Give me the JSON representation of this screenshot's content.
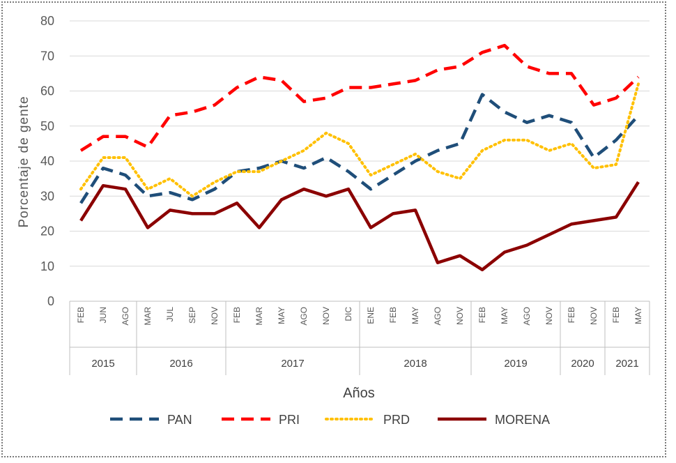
{
  "chart_data": {
    "type": "line",
    "xlabel": "Años",
    "ylabel": "Porcentaje de gente",
    "ylim": [
      0,
      80
    ],
    "yticks": [
      "0",
      "10",
      "20",
      "30",
      "40",
      "50",
      "60",
      "70",
      "80"
    ],
    "categories": [
      "FEB",
      "JUN",
      "AGO",
      "MAR",
      "JUL",
      "SEP",
      "NOV",
      "FEB",
      "MAR",
      "MAY",
      "AGO",
      "NOV",
      "DIC",
      "ENE",
      "FEB",
      "MAY",
      "AGO",
      "NOV",
      "FEB",
      "MAY",
      "AGO",
      "NOV",
      "FEB",
      "NOV",
      "FEB",
      "MAY"
    ],
    "years": [
      {
        "label": "2015",
        "start": 0,
        "count": 3
      },
      {
        "label": "2016",
        "start": 3,
        "count": 4
      },
      {
        "label": "2017",
        "start": 7,
        "count": 6
      },
      {
        "label": "2018",
        "start": 13,
        "count": 5
      },
      {
        "label": "2019",
        "start": 18,
        "count": 4
      },
      {
        "label": "2020",
        "start": 22,
        "count": 2
      },
      {
        "label": "2021",
        "start": 24,
        "count": 2
      }
    ],
    "series": [
      {
        "name": "PAN",
        "color": "#1f4e79",
        "style": "dash",
        "values": [
          28,
          38,
          36,
          30,
          31,
          29,
          32,
          37,
          38,
          40,
          38,
          41,
          37,
          32,
          36,
          40,
          43,
          45,
          59,
          54,
          51,
          53,
          51,
          41,
          46,
          53
        ]
      },
      {
        "name": "PRI",
        "color": "#ff0000",
        "style": "dash",
        "values": [
          43,
          47,
          47,
          44,
          53,
          54,
          56,
          61,
          64,
          63,
          57,
          58,
          61,
          61,
          62,
          63,
          66,
          67,
          71,
          73,
          67,
          65,
          65,
          56,
          58,
          64
        ]
      },
      {
        "name": "PRD",
        "color": "#ffc000",
        "style": "dot",
        "values": [
          32,
          41,
          41,
          32,
          35,
          30,
          34,
          37,
          37,
          40,
          43,
          48,
          45,
          36,
          39,
          42,
          37,
          35,
          43,
          46,
          46,
          43,
          45,
          38,
          39,
          62
        ]
      },
      {
        "name": "MORENA",
        "color": "#8b0000",
        "style": "solid",
        "values": [
          23,
          33,
          32,
          21,
          26,
          25,
          25,
          28,
          21,
          29,
          32,
          30,
          32,
          21,
          25,
          26,
          11,
          13,
          9,
          14,
          16,
          19,
          22,
          23,
          24,
          34
        ]
      }
    ]
  }
}
